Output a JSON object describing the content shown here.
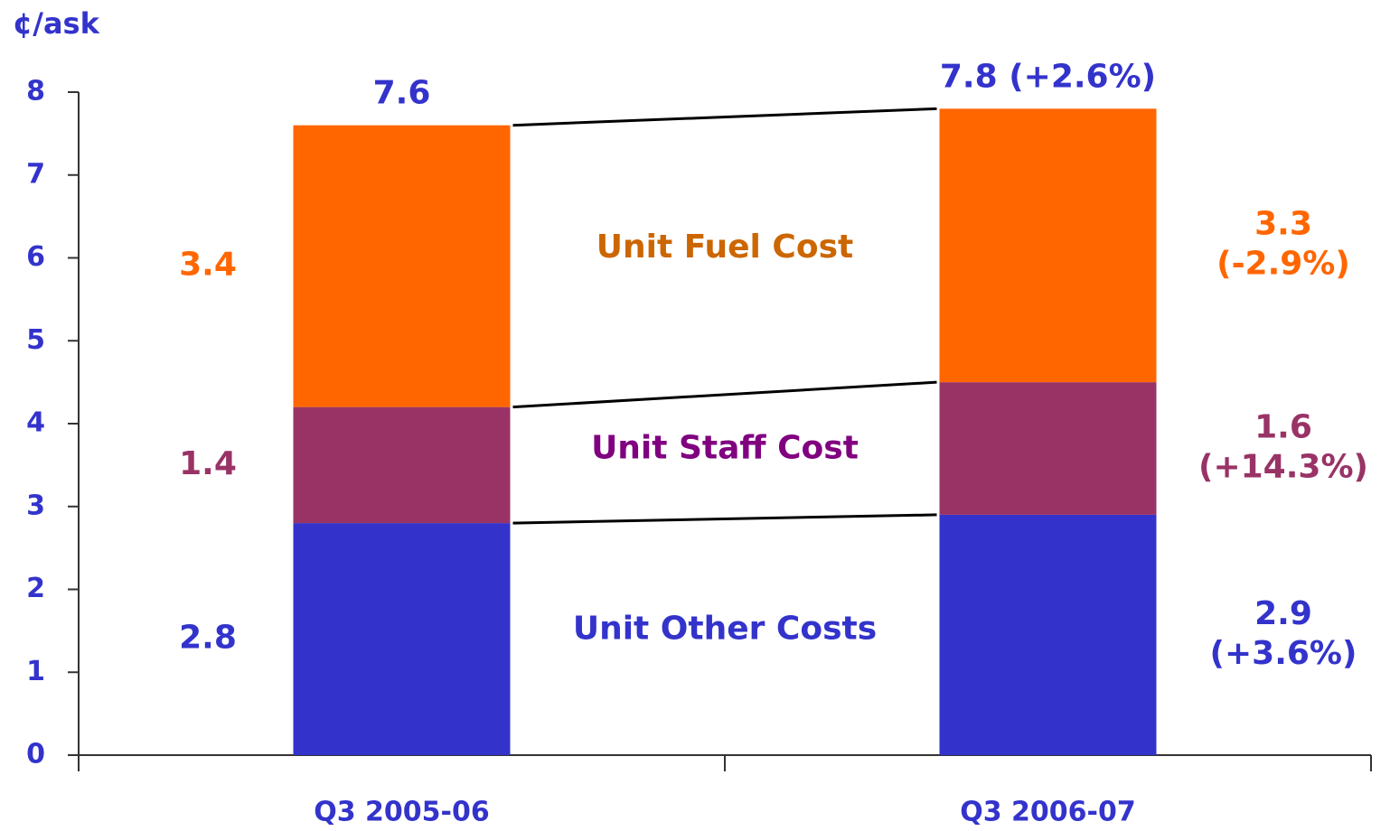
{
  "chart_data": {
    "type": "stacked-bar",
    "y_axis_label": "¢/ask",
    "categories": [
      "Q3 2005-06",
      "Q3 2006-07"
    ],
    "series": [
      {
        "name": "Unit Other Costs",
        "color": "#3333cc",
        "label_color": "#3333cc",
        "values": [
          2.8,
          2.9
        ],
        "changes": [
          null,
          "(+3.6%)"
        ]
      },
      {
        "name": "Unit Staff Cost",
        "color": "#993366",
        "label_color": "#800080",
        "values": [
          1.4,
          1.6
        ],
        "changes": [
          null,
          "(+14.3%)"
        ]
      },
      {
        "name": "Unit Fuel Cost",
        "color": "#ff6600",
        "label_color": "#cc6600",
        "values": [
          3.4,
          3.3
        ],
        "changes": [
          null,
          "(-2.9%)"
        ]
      }
    ],
    "totals": [
      7.6,
      7.8
    ],
    "total_changes": [
      null,
      "(+2.6%)"
    ],
    "ylim": [
      0,
      8
    ],
    "yticks": [
      0,
      1,
      2,
      3,
      4,
      5,
      6,
      7,
      8
    ]
  }
}
